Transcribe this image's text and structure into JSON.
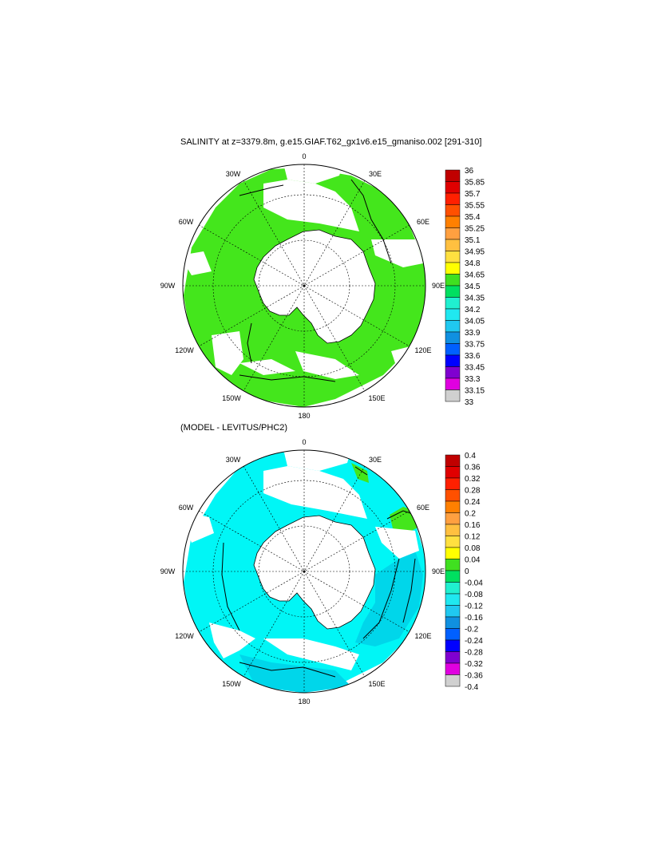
{
  "titles": {
    "top": "SALINITY at z=3379.8m, g.e15.GIAF.T62_gx1v6.e15_gmaniso.002 [291-310]",
    "bottom": "(MODEL - LEVITUS/PHC2)"
  },
  "longitude_labels": {
    "top": "0",
    "lon30E": "30E",
    "lon60E": "60E",
    "lon90E": "90E",
    "lon120E": "120E",
    "lon150E": "150E",
    "bottom": "180",
    "lon150W": "150W",
    "lon120W": "120W",
    "lon90W": "90W",
    "lon60W": "60W",
    "lon30W": "30W"
  },
  "colorbars": {
    "top": {
      "labels": [
        "36",
        "35.85",
        "35.7",
        "35.55",
        "35.4",
        "35.25",
        "35.1",
        "34.95",
        "34.8",
        "34.65",
        "34.5",
        "34.35",
        "34.2",
        "34.05",
        "33.9",
        "33.75",
        "33.6",
        "33.45",
        "33.3",
        "33.15",
        "33"
      ],
      "colors": [
        "#c00000",
        "#e00000",
        "#ff2000",
        "#ff5000",
        "#ff8000",
        "#ffa040",
        "#ffc040",
        "#ffe040",
        "#ffff00",
        "#40e020",
        "#00e060",
        "#20f0d0",
        "#20e8f0",
        "#20c8f0",
        "#1090e0",
        "#0060ff",
        "#0000ff",
        "#8000d0",
        "#e000e0",
        "#d0d0d0",
        "#707070"
      ]
    },
    "bottom": {
      "labels": [
        "0.4",
        "0.36",
        "0.32",
        "0.28",
        "0.24",
        "0.2",
        "0.16",
        "0.12",
        "0.08",
        "0.04",
        "0",
        "-0.04",
        "-0.08",
        "-0.12",
        "-0.16",
        "-0.2",
        "-0.24",
        "-0.28",
        "-0.32",
        "-0.36",
        "-0.4"
      ],
      "colors": [
        "#c00000",
        "#e00000",
        "#ff2000",
        "#ff5000",
        "#ff8000",
        "#ffa040",
        "#ffc040",
        "#ffe040",
        "#ffff00",
        "#40e020",
        "#00e060",
        "#20f0d0",
        "#20e8f0",
        "#20c8f0",
        "#1090e0",
        "#0060ff",
        "#0000ff",
        "#8000d0",
        "#e000e0",
        "#d0d0d0",
        "#707070"
      ]
    }
  },
  "map_colors": {
    "land_fill": "#ffffff",
    "top_field": "#44e61c",
    "bottom_field_main": "#00f6f6",
    "bottom_field_dark": "#00d6ea",
    "bottom_field_pos": "#44e61c"
  }
}
